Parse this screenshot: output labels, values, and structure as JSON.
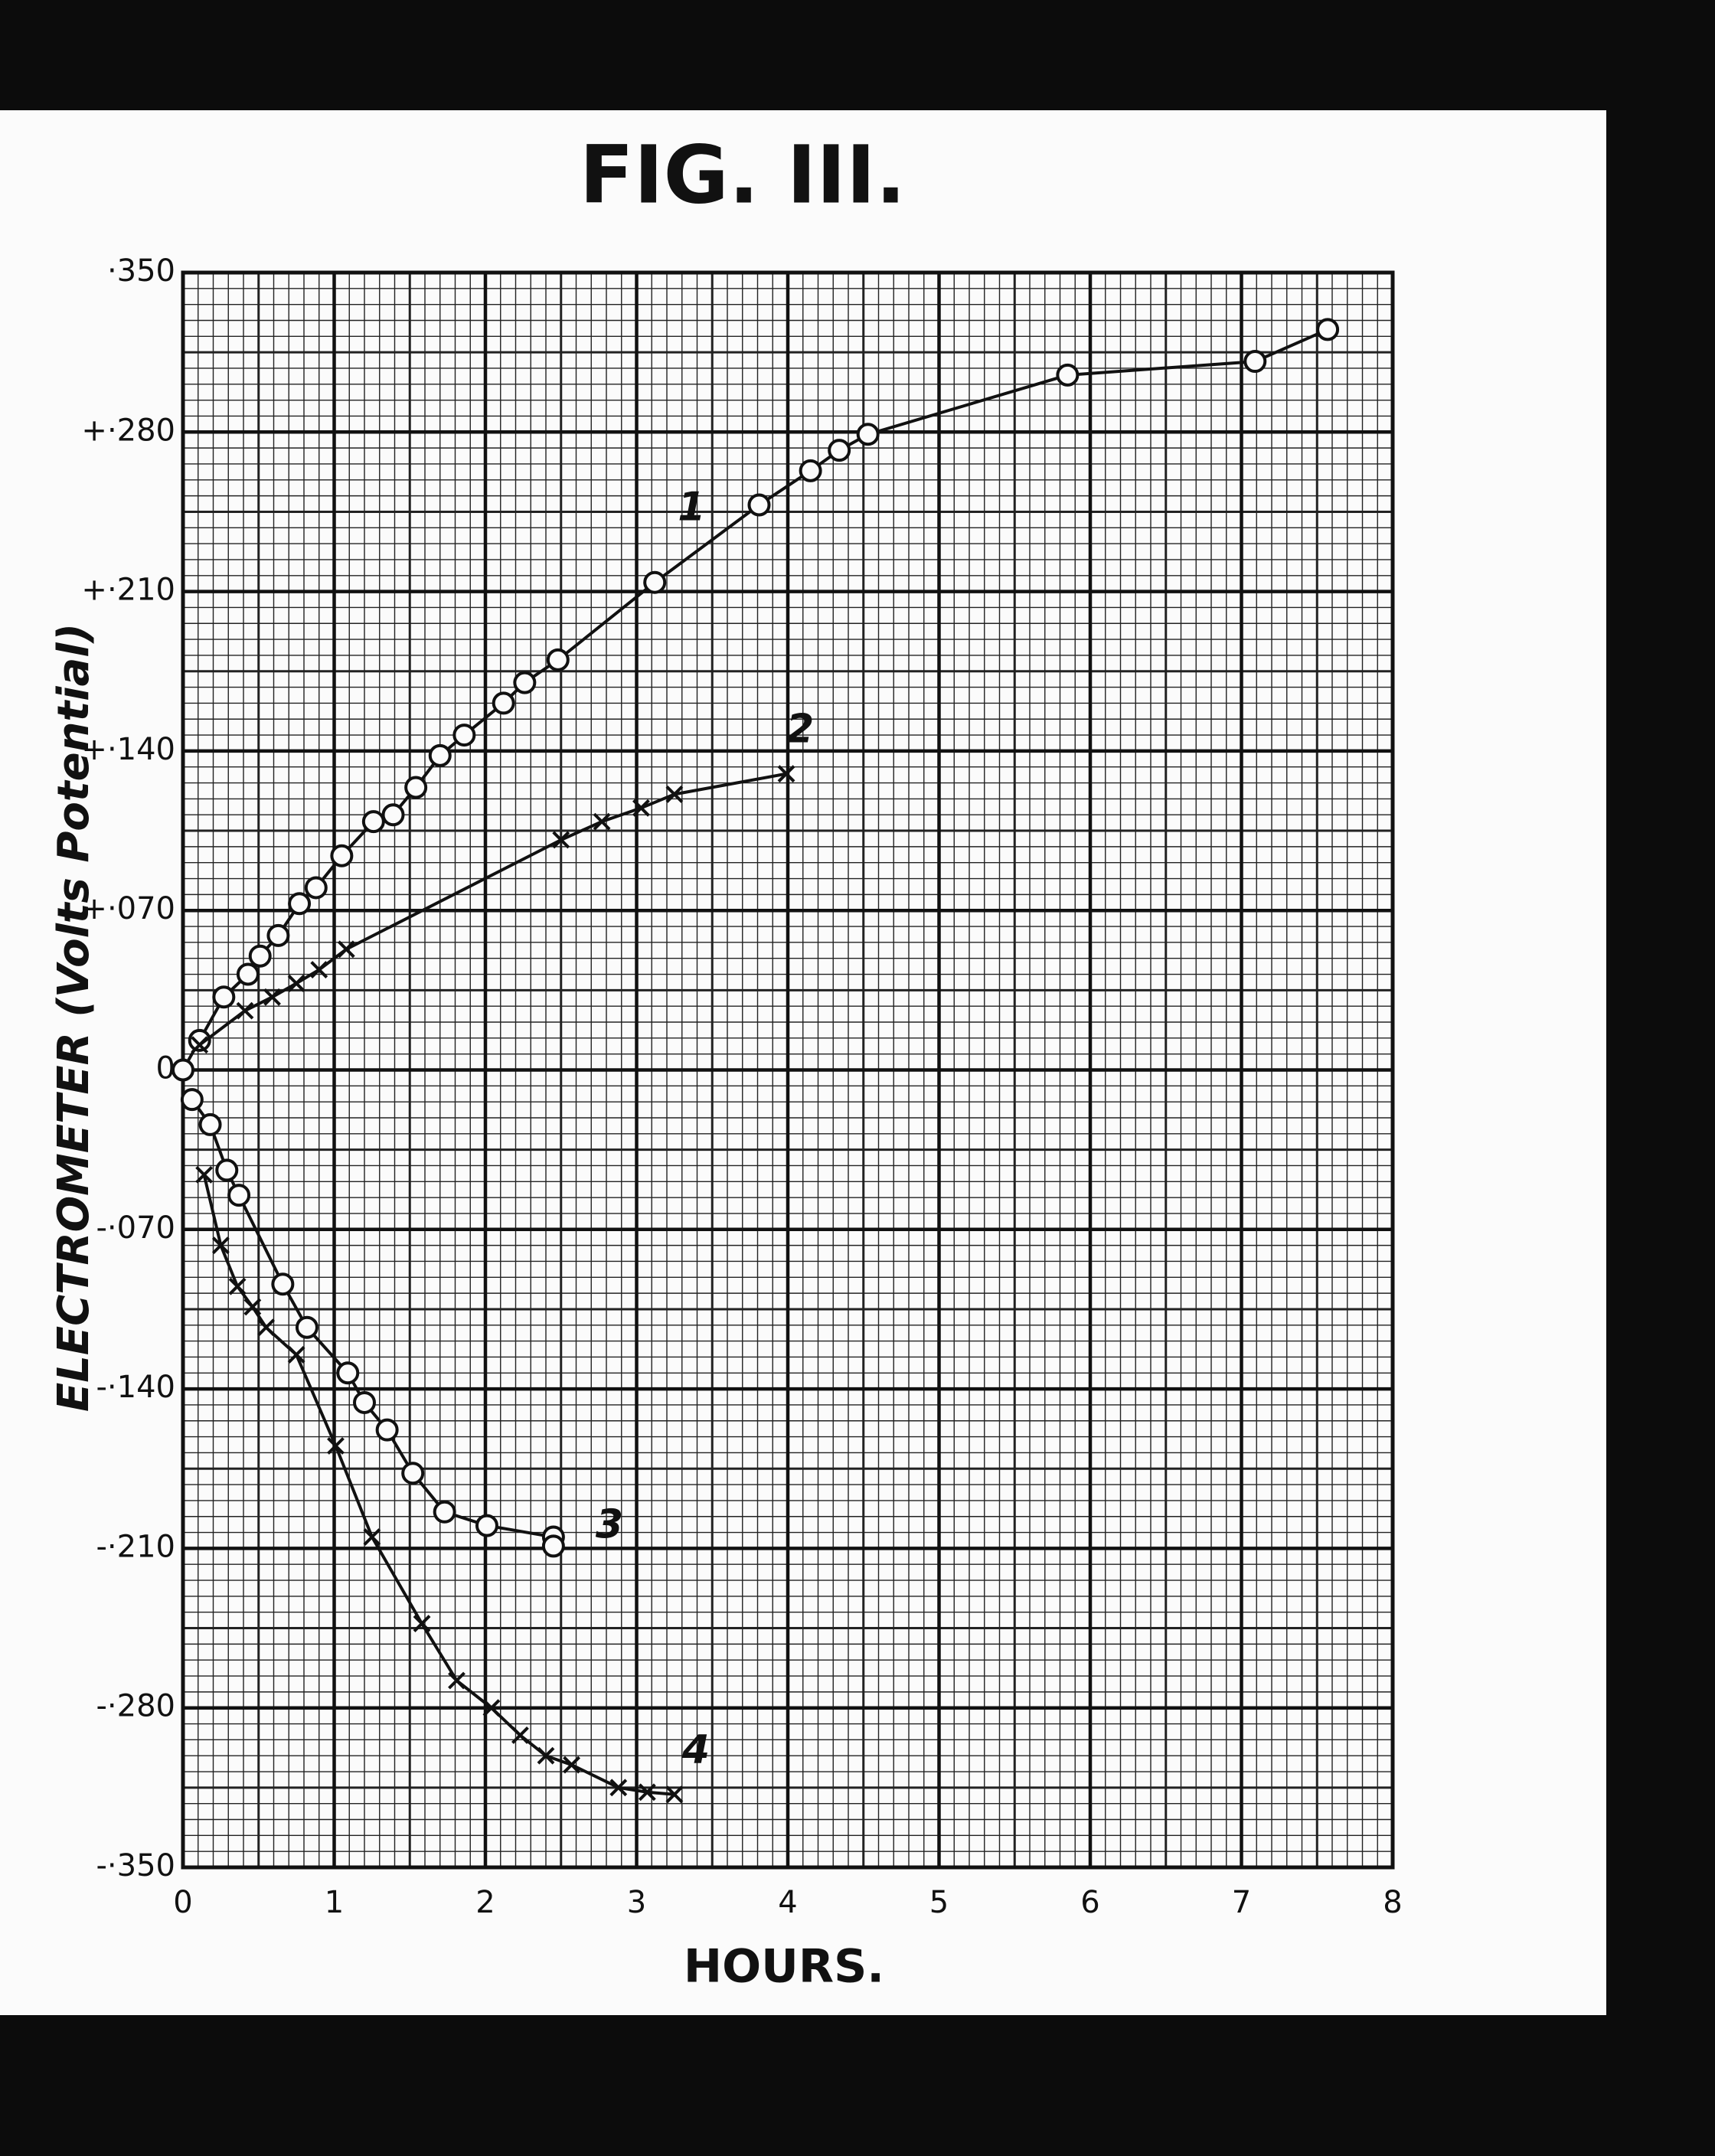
{
  "chart_data": {
    "type": "line",
    "title": "FIG. III.",
    "x_label": "HOURS.",
    "y_label": "ELECTROMETER (Volts Potential)",
    "xlim": [
      0,
      8
    ],
    "xticks": [
      0,
      1,
      2,
      3,
      4,
      5,
      6,
      7,
      8
    ],
    "ylim": [
      -0.35,
      0.35
    ],
    "yticks": [
      {
        "value": 0.35,
        "label": "·350"
      },
      {
        "value": 0.28,
        "label": "+·280"
      },
      {
        "value": 0.21,
        "label": "+·210"
      },
      {
        "value": 0.14,
        "label": "+·140"
      },
      {
        "value": 0.07,
        "label": "+·070"
      },
      0,
      {
        "value": -0.07,
        "label": "-·070"
      },
      {
        "value": -0.14,
        "label": "-·140"
      },
      {
        "value": -0.21,
        "label": "-·210"
      },
      {
        "value": -0.28,
        "label": "-·280"
      },
      {
        "value": -0.35,
        "label": "-·350"
      }
    ],
    "grid": true,
    "series": [
      {
        "name": "1",
        "color": "#111111",
        "marker": "o",
        "x": [
          0,
          0.11,
          0.27,
          0.43,
          0.51,
          0.63,
          0.77,
          0.88,
          1.05,
          1.26,
          1.39,
          1.54,
          1.7,
          1.86,
          2.12,
          2.26,
          2.48,
          3.12,
          3.81,
          4.15,
          4.34,
          4.53,
          5.85,
          7.09,
          7.57
        ],
        "values": [
          0,
          0.013,
          0.032,
          0.042,
          0.05,
          0.059,
          0.073,
          0.08,
          0.094,
          0.109,
          0.112,
          0.124,
          0.138,
          0.147,
          0.161,
          0.17,
          0.18,
          0.214,
          0.248,
          0.263,
          0.272,
          0.279,
          0.305,
          0.311,
          0.325
        ]
      },
      {
        "name": "2",
        "color": "#111111",
        "marker": "x",
        "x": [
          0.11,
          0.41,
          0.59,
          0.75,
          0.9,
          1.08,
          2.5,
          2.77,
          3.03,
          3.25,
          3.99
        ],
        "values": [
          0.011,
          0.026,
          0.032,
          0.038,
          0.044,
          0.053,
          0.101,
          0.109,
          0.115,
          0.121,
          0.13
        ]
      },
      {
        "name": "3",
        "color": "#111111",
        "marker": "o",
        "x": [
          0.06,
          0.18,
          0.29,
          0.37,
          0.66,
          0.82,
          1.09,
          1.2,
          1.35,
          1.52,
          1.73,
          2.01,
          2.45,
          2.45
        ],
        "values": [
          -0.013,
          -0.024,
          -0.044,
          -0.055,
          -0.094,
          -0.113,
          -0.133,
          -0.146,
          -0.158,
          -0.177,
          -0.194,
          -0.2,
          -0.205,
          -0.209
        ]
      },
      {
        "name": "4",
        "color": "#111111",
        "marker": "x",
        "x": [
          0.14,
          0.25,
          0.36,
          0.46,
          0.55,
          0.75,
          1.01,
          1.25,
          1.58,
          1.81,
          2.04,
          2.23,
          2.4,
          2.57,
          2.88,
          3.07,
          3.25
        ],
        "values": [
          -0.046,
          -0.077,
          -0.095,
          -0.104,
          -0.113,
          -0.125,
          -0.165,
          -0.205,
          -0.243,
          -0.268,
          -0.28,
          -0.292,
          -0.301,
          -0.305,
          -0.315,
          -0.317,
          -0.318
        ]
      }
    ]
  }
}
